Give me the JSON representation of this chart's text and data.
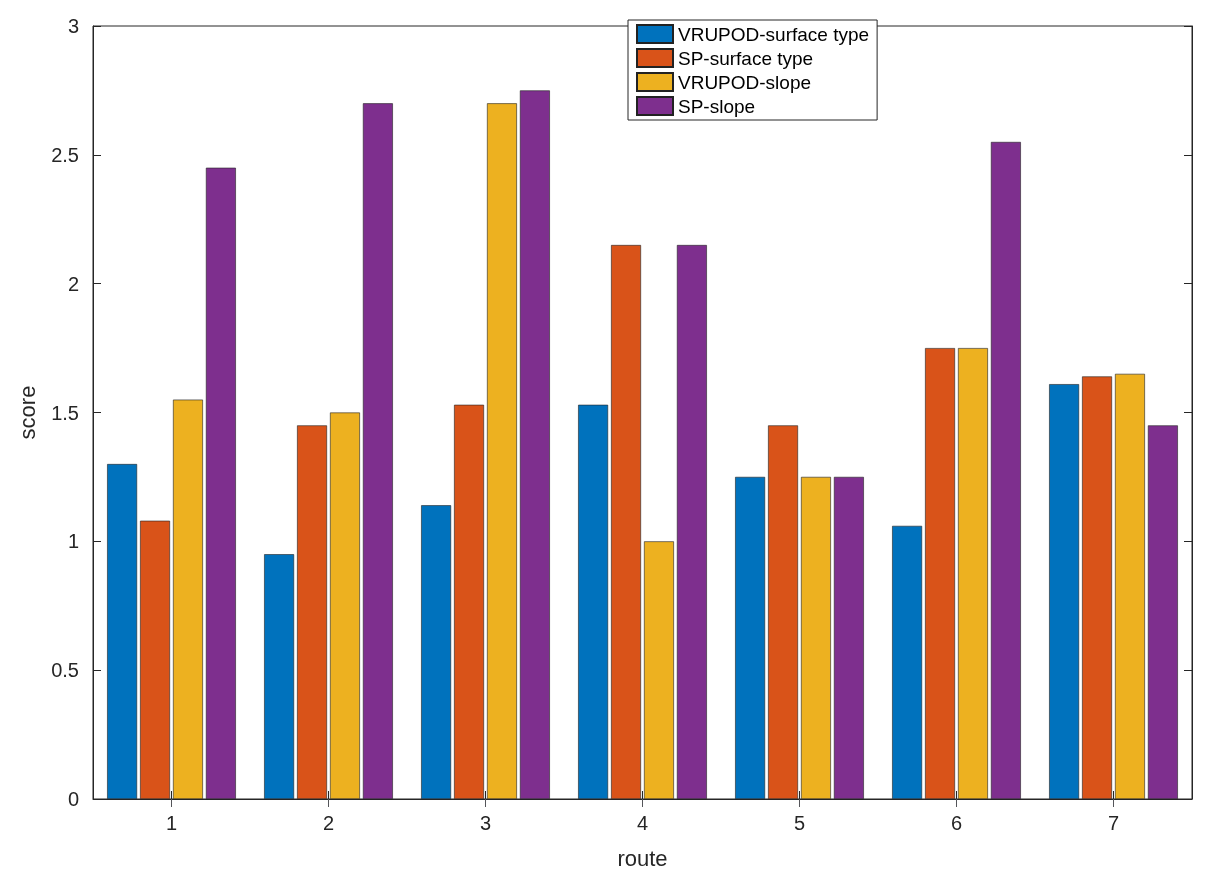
{
  "chart_data": {
    "type": "bar",
    "xlabel": "route",
    "ylabel": "score",
    "categories": [
      "1",
      "2",
      "3",
      "4",
      "5",
      "6",
      "7"
    ],
    "series": [
      {
        "name": "VRUPOD-surface type",
        "color": "#0072bd",
        "values": [
          1.3,
          0.95,
          1.14,
          1.53,
          1.25,
          1.06,
          1.61
        ]
      },
      {
        "name": "SP-surface type",
        "color": "#d95319",
        "values": [
          1.08,
          1.45,
          1.53,
          2.15,
          1.45,
          1.75,
          1.64
        ]
      },
      {
        "name": "VRUPOD-slope",
        "color": "#edb120",
        "values": [
          1.55,
          1.5,
          2.7,
          1.0,
          1.25,
          1.75,
          1.65
        ]
      },
      {
        "name": "SP-slope",
        "color": "#7e2f8e",
        "values": [
          2.45,
          2.7,
          2.75,
          2.15,
          1.25,
          2.55,
          1.45
        ]
      }
    ],
    "ylim": [
      0,
      3
    ],
    "yticks": [
      0,
      0.5,
      1,
      1.5,
      2,
      2.5,
      3
    ],
    "grid": false,
    "legend": "top"
  }
}
